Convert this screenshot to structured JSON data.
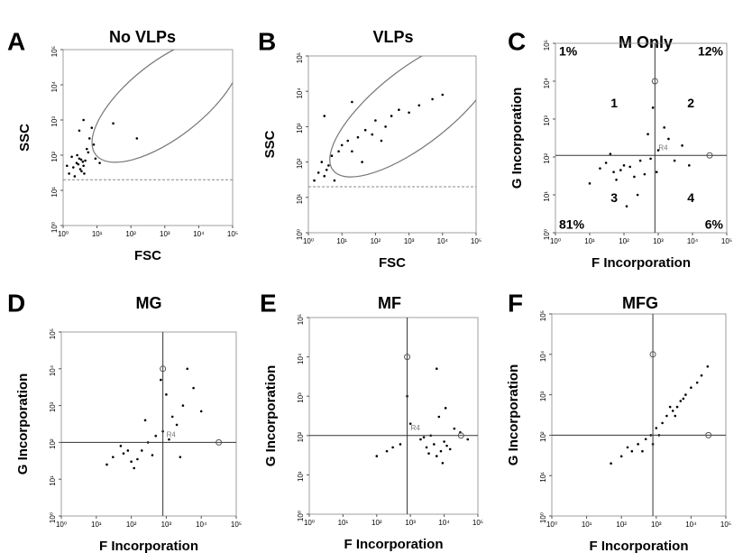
{
  "chart_data": [
    {
      "type": "scatter",
      "panel": "A",
      "title": "No VLPs",
      "xlabel": "FSC",
      "ylabel": "SSC",
      "log": true,
      "color": "#000000",
      "xlim": [
        1,
        100000
      ],
      "ylim": [
        1,
        100000
      ],
      "xticks": [
        {
          "value": 1,
          "label": "10⁰"
        },
        {
          "value": 10,
          "label": "10¹"
        },
        {
          "value": 100,
          "label": "10²"
        },
        {
          "value": 1000,
          "label": "10³"
        },
        {
          "value": 10000,
          "label": "10⁴"
        },
        {
          "value": 100000,
          "label": "10⁵"
        }
      ],
      "yticks": [
        {
          "value": 1,
          "label": "10⁰"
        },
        {
          "value": 10,
          "label": "10¹"
        },
        {
          "value": 100,
          "label": "10²"
        },
        {
          "value": 1000,
          "label": "10³"
        },
        {
          "value": 10000,
          "label": "10⁴"
        },
        {
          "value": 100000,
          "label": "10⁵"
        }
      ],
      "threshold": 20,
      "x": [
        1.5,
        2,
        2.5,
        3,
        3.5,
        4,
        4.5,
        2.2,
        3.2,
        1.8,
        2.8,
        3.8,
        4.2,
        1.3,
        2.6,
        3.4,
        5,
        6,
        7,
        8,
        4,
        3,
        5.5,
        9,
        12,
        30,
        150
      ],
      "y": [
        30,
        45,
        60,
        80,
        35,
        50,
        70,
        25,
        40,
        90,
        55,
        65,
        30,
        50,
        100,
        75,
        150,
        300,
        600,
        200,
        1000,
        500,
        120,
        80,
        60,
        800,
        300
      ]
    },
    {
      "type": "scatter",
      "panel": "B",
      "title": "VLPs",
      "xlabel": "FSC",
      "ylabel": "SSC",
      "log": true,
      "color": "#000000",
      "xlim": [
        1,
        100000
      ],
      "ylim": [
        1,
        100000
      ],
      "xticks": [
        {
          "value": 1,
          "label": "10⁰"
        },
        {
          "value": 10,
          "label": "10¹"
        },
        {
          "value": 100,
          "label": "10²"
        },
        {
          "value": 1000,
          "label": "10³"
        },
        {
          "value": 10000,
          "label": "10⁴"
        },
        {
          "value": 100000,
          "label": "10⁵"
        }
      ],
      "yticks": [
        {
          "value": 1,
          "label": "10⁰"
        },
        {
          "value": 10,
          "label": "10¹"
        },
        {
          "value": 100,
          "label": "10²"
        },
        {
          "value": 1000,
          "label": "10³"
        },
        {
          "value": 10000,
          "label": "10⁴"
        },
        {
          "value": 100000,
          "label": "10⁵"
        }
      ],
      "threshold": 20,
      "x": [
        1.5,
        2,
        3,
        4,
        2.5,
        3.5,
        5,
        8,
        10,
        15,
        20,
        30,
        50,
        80,
        100,
        200,
        300,
        500,
        1000,
        2000,
        5000,
        10000,
        3,
        6,
        40,
        150,
        20
      ],
      "y": [
        30,
        50,
        40,
        80,
        100,
        60,
        150,
        200,
        300,
        400,
        200,
        500,
        800,
        600,
        1500,
        1000,
        2000,
        3000,
        2500,
        4000,
        6000,
        8000,
        2000,
        30,
        100,
        400,
        5000
      ]
    },
    {
      "type": "scatter",
      "panel": "C",
      "title": "M Only",
      "xlabel": "F Incorporation",
      "ylabel": "G Incorporation",
      "log": true,
      "color": "#000000",
      "xlim": [
        1,
        100000
      ],
      "ylim": [
        1,
        100000
      ],
      "xticks": [
        {
          "value": 1,
          "label": "10⁰"
        },
        {
          "value": 10,
          "label": "10¹"
        },
        {
          "value": 100,
          "label": "10²"
        },
        {
          "value": 1000,
          "label": "10³"
        },
        {
          "value": 10000,
          "label": "10⁴"
        },
        {
          "value": 100000,
          "label": "10⁵"
        }
      ],
      "yticks": [
        {
          "value": 1,
          "label": "10⁰"
        },
        {
          "value": 10,
          "label": "10¹"
        },
        {
          "value": 100,
          "label": "10²"
        },
        {
          "value": 1000,
          "label": "10³"
        },
        {
          "value": 10000,
          "label": "10⁴"
        },
        {
          "value": 100000,
          "label": "10⁵"
        }
      ],
      "quadrant_x": 800,
      "quadrant_y": 110,
      "gate_label": "R4",
      "quadrant_labels": [
        "1",
        "2",
        "3",
        "4"
      ],
      "quadrant_values": [
        1,
        12,
        81,
        6
      ],
      "quadrant_value_labels": [
        "1%",
        "12%",
        "81%",
        "6%"
      ],
      "x": [
        20,
        50,
        100,
        200,
        300,
        30,
        80,
        150,
        400,
        600,
        1000,
        2000,
        5000,
        10,
        40,
        250,
        500,
        3000,
        700,
        120,
        60,
        8000,
        1500,
        900
      ],
      "y": [
        50,
        40,
        60,
        30,
        80,
        70,
        45,
        55,
        35,
        90,
        150,
        300,
        200,
        20,
        120,
        10,
        400,
        80,
        2000,
        5,
        25,
        60,
        600,
        40
      ]
    },
    {
      "type": "scatter",
      "panel": "D",
      "title": "MG",
      "xlabel": "F Incorporation",
      "ylabel": "G Incorporation",
      "log": true,
      "color": "#000000",
      "xlim": [
        1,
        100000
      ],
      "ylim": [
        1,
        100000
      ],
      "xticks": [
        {
          "value": 1,
          "label": "10⁰"
        },
        {
          "value": 10,
          "label": "10¹"
        },
        {
          "value": 100,
          "label": "10²"
        },
        {
          "value": 1000,
          "label": "10³"
        },
        {
          "value": 10000,
          "label": "10⁴"
        },
        {
          "value": 100000,
          "label": "10⁵"
        }
      ],
      "yticks": [
        {
          "value": 1,
          "label": "10⁰"
        },
        {
          "value": 10,
          "label": "10¹"
        },
        {
          "value": 100,
          "label": "10²"
        },
        {
          "value": 1000,
          "label": "10³"
        },
        {
          "value": 10000,
          "label": "10⁴"
        },
        {
          "value": 100000,
          "label": "10⁵"
        }
      ],
      "quadrant_x": 800,
      "quadrant_y": 100,
      "gate_label": "R4",
      "x": [
        30,
        60,
        100,
        200,
        400,
        50,
        150,
        300,
        800,
        1500,
        3000,
        6000,
        1000,
        2000,
        500,
        20,
        80,
        250,
        4000,
        10000,
        700,
        120,
        1200,
        2500
      ],
      "y": [
        40,
        50,
        30,
        60,
        45,
        80,
        35,
        100,
        200,
        500,
        1000,
        3000,
        2000,
        300,
        150,
        25,
        60,
        400,
        10000,
        700,
        5000,
        20,
        120,
        40
      ]
    },
    {
      "type": "scatter",
      "panel": "E",
      "title": "MF",
      "xlabel": "F Incorporation",
      "ylabel": "G Incorporation",
      "log": true,
      "color": "#000000",
      "xlim": [
        1,
        100000
      ],
      "ylim": [
        1,
        100000
      ],
      "xticks": [
        {
          "value": 1,
          "label": "10⁰"
        },
        {
          "value": 10,
          "label": "10¹"
        },
        {
          "value": 100,
          "label": "10²"
        },
        {
          "value": 1000,
          "label": "10³"
        },
        {
          "value": 10000,
          "label": "10⁴"
        },
        {
          "value": 100000,
          "label": "10⁵"
        }
      ],
      "yticks": [
        {
          "value": 1,
          "label": "10⁰"
        },
        {
          "value": 10,
          "label": "10¹"
        },
        {
          "value": 100,
          "label": "10²"
        },
        {
          "value": 1000,
          "label": "10³"
        },
        {
          "value": 10000,
          "label": "10⁴"
        },
        {
          "value": 100000,
          "label": "10⁵"
        }
      ],
      "quadrant_x": 800,
      "quadrant_y": 100,
      "gate_label": "R4",
      "x": [
        3000,
        5000,
        8000,
        10000,
        15000,
        2000,
        6000,
        4000,
        12000,
        20000,
        1000,
        500,
        200,
        100,
        30000,
        7000,
        9000,
        2500,
        50000,
        800,
        300,
        6000,
        3500,
        11000
      ],
      "y": [
        50,
        60,
        40,
        70,
        45,
        80,
        30,
        100,
        55,
        150,
        200,
        60,
        40,
        30,
        120,
        300,
        20,
        90,
        80,
        1000,
        50,
        5000,
        35,
        500
      ]
    },
    {
      "type": "scatter",
      "panel": "F",
      "title": "MFG",
      "xlabel": "F Incorporation",
      "ylabel": "G Incorporation",
      "log": true,
      "color": "#000000",
      "xlim": [
        1,
        100000
      ],
      "ylim": [
        1,
        100000
      ],
      "xticks": [
        {
          "value": 1,
          "label": "10⁰"
        },
        {
          "value": 10,
          "label": "10¹"
        },
        {
          "value": 100,
          "label": "10²"
        },
        {
          "value": 1000,
          "label": "10³"
        },
        {
          "value": 10000,
          "label": "10⁴"
        },
        {
          "value": 100000,
          "label": "10⁵"
        }
      ],
      "yticks": [
        {
          "value": 1,
          "label": "10⁰"
        },
        {
          "value": 10,
          "label": "10¹"
        },
        {
          "value": 100,
          "label": "10²"
        },
        {
          "value": 1000,
          "label": "10³"
        },
        {
          "value": 10000,
          "label": "10⁴"
        },
        {
          "value": 100000,
          "label": "10⁵"
        }
      ],
      "quadrant_x": 800,
      "quadrant_y": 100,
      "x": [
        50,
        100,
        200,
        300,
        500,
        700,
        1000,
        1500,
        2000,
        3000,
        4000,
        5000,
        7000,
        10000,
        15000,
        20000,
        30000,
        2500,
        3500,
        800,
        150,
        6000,
        1200,
        400
      ],
      "y": [
        20,
        30,
        40,
        60,
        80,
        100,
        150,
        200,
        300,
        400,
        500,
        700,
        1000,
        1500,
        2000,
        3000,
        5000,
        500,
        300,
        60,
        50,
        800,
        100,
        40
      ]
    }
  ]
}
